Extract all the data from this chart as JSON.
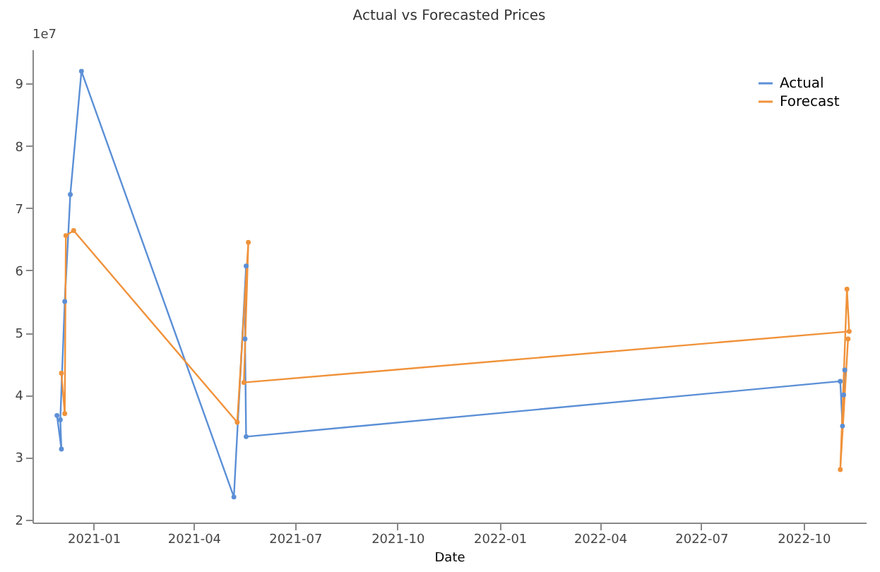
{
  "chart_data": {
    "type": "line",
    "title": "Actual vs Forecasted Prices",
    "xlabel": "Date",
    "annotations": [
      "1e7"
    ],
    "xlim": [
      "2020-11-07",
      "2022-11-26"
    ],
    "xticks": [
      "2021-01",
      "2021-04",
      "2021-07",
      "2021-10",
      "2022-01",
      "2022-04",
      "2022-07",
      "2022-10"
    ],
    "ylim": [
      1.95,
      9.55
    ],
    "yticks": [
      2,
      3,
      4,
      5,
      6,
      7,
      8,
      9
    ],
    "grid": false,
    "legend": "top right",
    "marker": "circle",
    "line_style": "solid",
    "series": [
      {
        "name": "Actual",
        "color": "#5b8fd6",
        "x": [
          "2020-11-29",
          "2020-12-03",
          "2020-12-02",
          "2020-12-06",
          "2020-12-11",
          "2020-12-21",
          "2021-05-07",
          "2021-05-18",
          "2021-05-17",
          "2021-05-18",
          "2022-11-03",
          "2022-11-05",
          "2022-11-07",
          "2022-11-06"
        ],
        "values": [
          3.67,
          3.13,
          3.6,
          5.5,
          7.22,
          9.2,
          2.36,
          6.07,
          4.9,
          3.33,
          4.22,
          3.5,
          4.4,
          4.0
        ]
      },
      {
        "name": "Forecast",
        "color": "#f0923a",
        "x": [
          "2020-12-03",
          "2020-12-06",
          "2020-12-07",
          "2020-12-14",
          "2021-05-10",
          "2021-05-20",
          "2021-05-16",
          "2022-11-11",
          "2022-11-09",
          "2022-11-03",
          "2022-11-10"
        ],
        "values": [
          4.35,
          3.7,
          6.56,
          6.64,
          3.56,
          6.45,
          4.2,
          5.02,
          5.7,
          2.8,
          4.9
        ]
      }
    ]
  }
}
